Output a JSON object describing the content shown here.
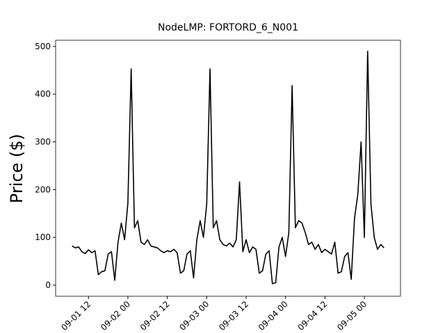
{
  "chart_data": {
    "type": "line",
    "title": "NodeLMP: FORTORD_6_N001",
    "y_label": "Price ($)",
    "x": [
      "09-01 07",
      "09-01 08",
      "09-01 09",
      "09-01 10",
      "09-01 11",
      "09-01 12",
      "09-01 13",
      "09-01 14",
      "09-01 15",
      "09-01 16",
      "09-01 17",
      "09-01 18",
      "09-01 19",
      "09-01 20",
      "09-01 21",
      "09-01 22",
      "09-01 23",
      "09-02 00",
      "09-02 01",
      "09-02 02",
      "09-02 03",
      "09-02 04",
      "09-02 05",
      "09-02 06",
      "09-02 07",
      "09-02 08",
      "09-02 09",
      "09-02 10",
      "09-02 11",
      "09-02 12",
      "09-02 13",
      "09-02 14",
      "09-02 15",
      "09-02 16",
      "09-02 17",
      "09-02 18",
      "09-02 19",
      "09-02 20",
      "09-02 21",
      "09-02 22",
      "09-02 23",
      "09-03 00",
      "09-03 01",
      "09-03 02",
      "09-03 03",
      "09-03 04",
      "09-03 05",
      "09-03 06",
      "09-03 07",
      "09-03 08",
      "09-03 09",
      "09-03 10",
      "09-03 11",
      "09-03 12",
      "09-03 13",
      "09-03 14",
      "09-03 15",
      "09-03 16",
      "09-03 17",
      "09-03 18",
      "09-03 19",
      "09-03 20",
      "09-03 21",
      "09-03 22",
      "09-03 23",
      "09-04 00",
      "09-04 01",
      "09-04 02",
      "09-04 03",
      "09-04 04",
      "09-04 05",
      "09-04 06",
      "09-04 07",
      "09-04 08",
      "09-04 09",
      "09-04 10",
      "09-04 11",
      "09-04 12",
      "09-04 13",
      "09-04 14",
      "09-04 15",
      "09-04 16",
      "09-04 17",
      "09-04 18",
      "09-04 19",
      "09-04 20",
      "09-04 21",
      "09-04 22",
      "09-04 23",
      "09-05 00",
      "09-05 01",
      "09-05 02",
      "09-05 03",
      "09-05 04",
      "09-05 05",
      "09-05 06"
    ],
    "series": [
      {
        "name": "FORTORD_6_N001",
        "color": "#000000",
        "values": [
          82,
          78,
          80,
          70,
          66,
          74,
          68,
          72,
          22,
          28,
          30,
          65,
          70,
          10,
          90,
          130,
          95,
          172,
          453,
          120,
          135,
          90,
          85,
          95,
          82,
          80,
          78,
          72,
          68,
          72,
          70,
          75,
          68,
          25,
          30,
          65,
          72,
          15,
          95,
          135,
          100,
          170,
          453,
          120,
          135,
          95,
          85,
          82,
          88,
          80,
          95,
          216,
          70,
          95,
          68,
          80,
          75,
          25,
          30,
          65,
          72,
          3,
          5,
          80,
          100,
          60,
          110,
          418,
          120,
          135,
          130,
          110,
          85,
          90,
          75,
          85,
          68,
          75,
          70,
          65,
          90,
          25,
          28,
          60,
          68,
          12,
          140,
          190,
          300,
          100,
          490,
          170,
          100,
          75,
          85,
          78
        ]
      }
    ],
    "xlim": [
      "09-01 02",
      "09-05 11"
    ],
    "xticks": [
      "09-01 12",
      "09-02 00",
      "09-02 12",
      "09-03 00",
      "09-03 12",
      "09-04 00",
      "09-04 12",
      "09-05 00"
    ],
    "ylim": [
      -23.3,
      513
    ],
    "yticks": [
      0,
      100,
      200,
      300,
      400,
      500
    ]
  }
}
